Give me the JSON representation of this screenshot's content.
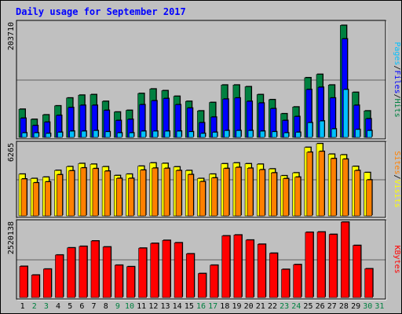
{
  "colors": {
    "background": "#C0C0C0",
    "frame": "#000000",
    "title": "#0000FF",
    "hits": "#008040",
    "files": "#0000FF",
    "pages": "#00C0FF",
    "visits": "#FFFF00",
    "sites": "#FF8000",
    "kbytes": "#FF0000",
    "weekday_label": "#000000",
    "weekend_label": "#008040"
  },
  "chart_data": {
    "type": "bar",
    "title": "Daily usage for September 2017",
    "categories": [
      "1",
      "2",
      "3",
      "4",
      "5",
      "6",
      "7",
      "8",
      "9",
      "10",
      "11",
      "12",
      "13",
      "14",
      "15",
      "16",
      "17",
      "18",
      "19",
      "20",
      "21",
      "22",
      "23",
      "24",
      "25",
      "26",
      "27",
      "28",
      "29",
      "30",
      "31"
    ],
    "weekend_days": [
      "2",
      "3",
      "9",
      "10",
      "16",
      "17",
      "23",
      "24",
      "30",
      "31"
    ],
    "panels": [
      {
        "name": "hits-files-pages",
        "max_label": "203710",
        "ylim": [
          0,
          203710
        ],
        "legend": [
          "Pages",
          "/",
          "Files",
          "/",
          "Hits"
        ],
        "series": [
          {
            "name": "Hits",
            "values": [
              50000,
              32000,
              40000,
              56000,
              70000,
              75000,
              76000,
              64000,
              45000,
              48000,
              78000,
              86000,
              83000,
              73000,
              64000,
              47000,
              62000,
              93000,
              93000,
              90000,
              76000,
              67000,
              42000,
              54000,
              106000,
              112000,
              93000,
              199000,
              80000,
              47000,
              0
            ]
          },
          {
            "name": "Files",
            "values": [
              34000,
              21000,
              27000,
              39000,
              53000,
              57000,
              57000,
              48000,
              30000,
              32000,
              58000,
              65000,
              69000,
              58000,
              52000,
              26000,
              36000,
              68000,
              70000,
              64000,
              61000,
              51000,
              30000,
              37000,
              85000,
              89000,
              70000,
              175000,
              57000,
              33000,
              0
            ]
          },
          {
            "name": "Pages",
            "values": [
              8000,
              8000,
              7000,
              9000,
              11000,
              11000,
              12000,
              10000,
              8000,
              8000,
              11000,
              11000,
              11000,
              11000,
              10000,
              7000,
              9000,
              12000,
              12000,
              12000,
              11000,
              10000,
              8000,
              9000,
              26000,
              29000,
              15000,
              85000,
              14000,
              12000,
              0
            ]
          }
        ]
      },
      {
        "name": "visits-sites",
        "max_label": "6265",
        "ylim": [
          0,
          6265
        ],
        "legend": [
          "Sites",
          "/",
          "Visits"
        ],
        "series": [
          {
            "name": "Visits",
            "values": [
              3620,
              3240,
              3360,
              3940,
              4270,
              4540,
              4480,
              4260,
              3500,
              3620,
              4310,
              4590,
              4550,
              4250,
              3930,
              3240,
              3620,
              4520,
              4590,
              4520,
              4480,
              4070,
              3480,
              3730,
              5940,
              6265,
              5350,
              5290,
              4290,
              3760,
              0
            ]
          },
          {
            "name": "Sites",
            "values": [
              3200,
              2870,
              2950,
              3570,
              3910,
              4160,
              4100,
              3880,
              3250,
              3250,
              3970,
              4140,
              4120,
              3930,
              3580,
              2970,
              3290,
              4110,
              4200,
              4130,
              4000,
              3730,
              3230,
              3360,
              5520,
              5590,
              4970,
              4920,
              3930,
              3120,
              0
            ]
          }
        ]
      },
      {
        "name": "kbytes",
        "max_label": "2520138",
        "ylim": [
          0,
          2520138
        ],
        "legend": [
          "KBytes"
        ],
        "series": [
          {
            "name": "KBytes",
            "values": [
              1040000,
              750000,
              950000,
              1420000,
              1660000,
              1710000,
              1890000,
              1690000,
              1080000,
              1030000,
              1650000,
              1810000,
              1910000,
              1830000,
              1460000,
              800000,
              1080000,
              2060000,
              2090000,
              1920000,
              1780000,
              1480000,
              940000,
              1100000,
              2180000,
              2190000,
              2110000,
              2520138,
              1740000,
              960000,
              0
            ]
          }
        ]
      }
    ]
  }
}
